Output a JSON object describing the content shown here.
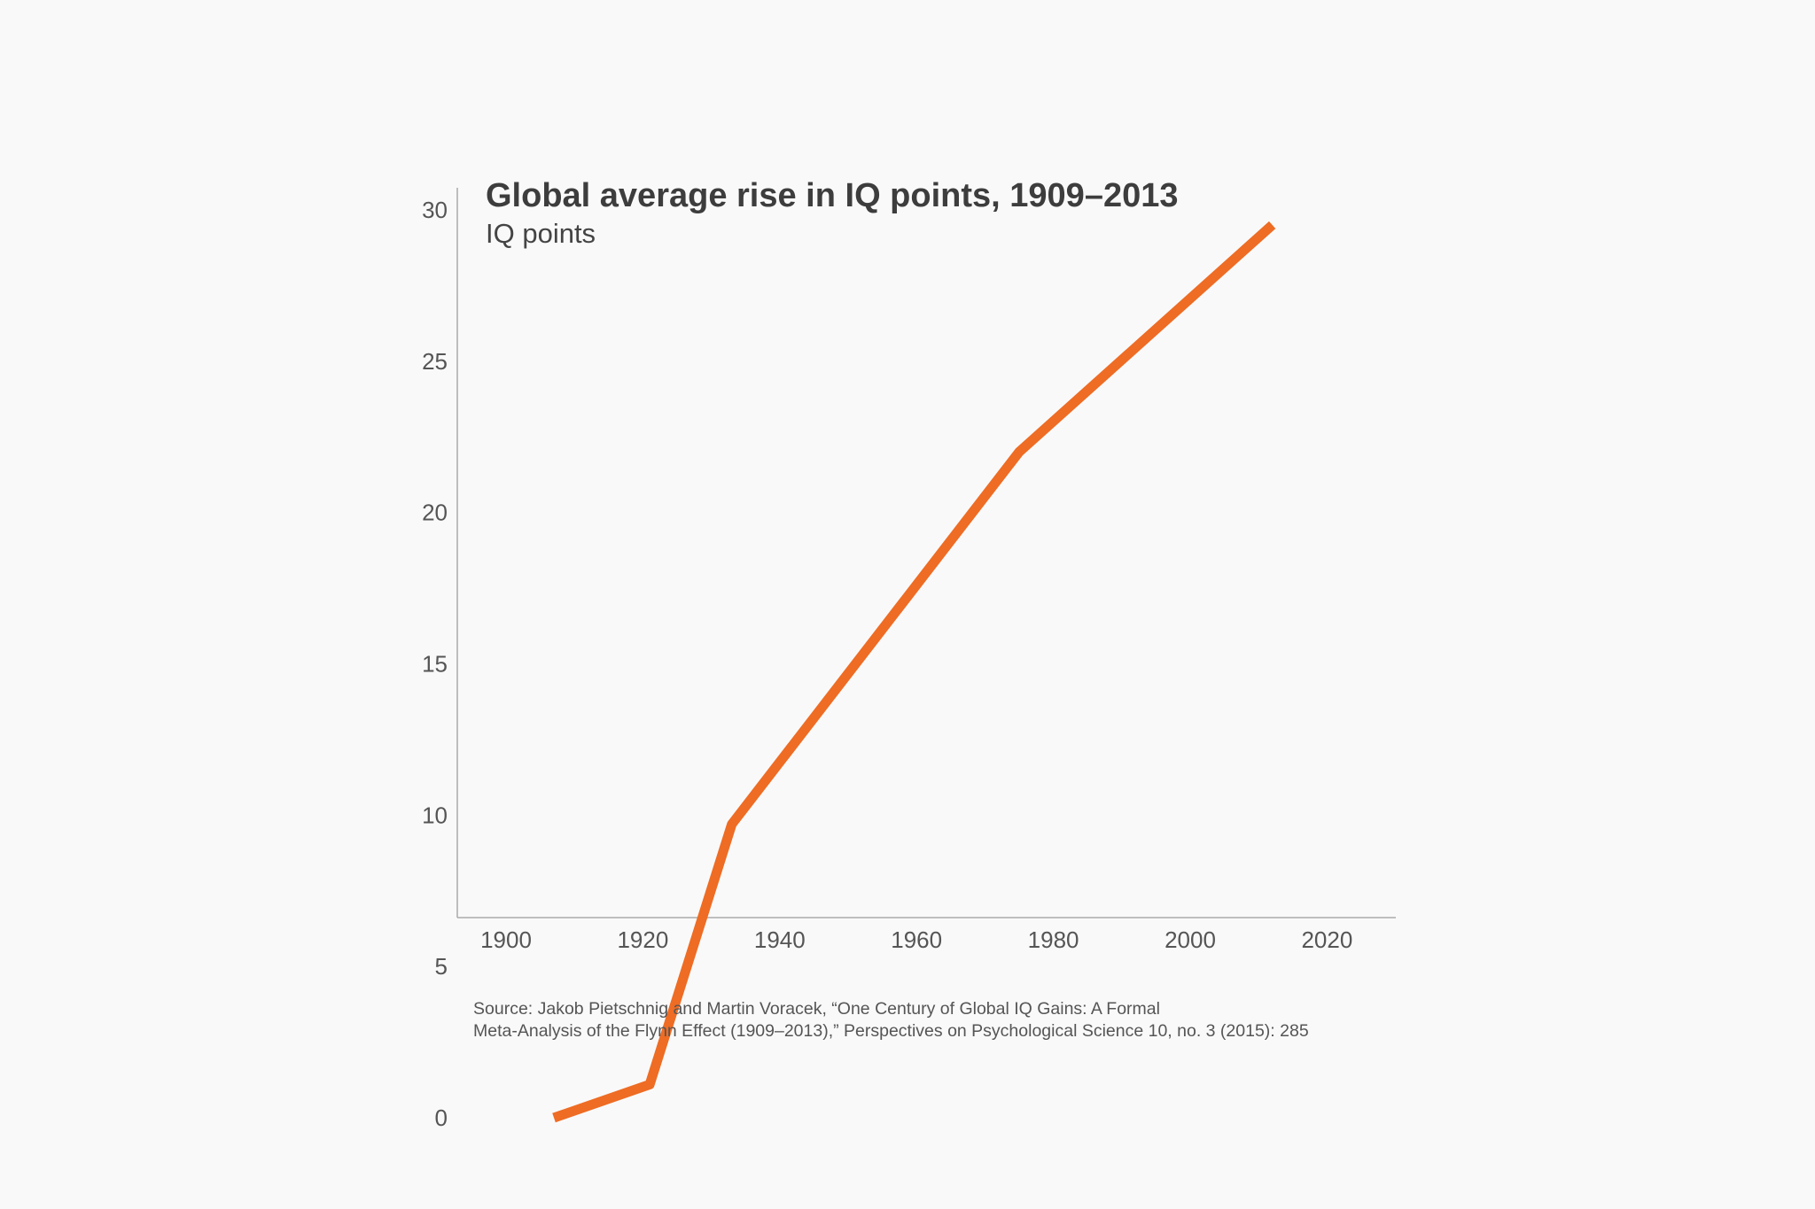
{
  "chart_data": {
    "type": "line",
    "title": "Global average rise in IQ points, 1909–2013",
    "subtitle": "IQ points",
    "xlabel": "",
    "ylabel": "",
    "xlim": [
      1895,
      2030
    ],
    "ylim": [
      0,
      30
    ],
    "x_ticks": [
      "1900",
      "1920",
      "1940",
      "1960",
      "1980",
      "2000",
      "2020"
    ],
    "y_ticks": [
      "0",
      "5",
      "10",
      "15",
      "20",
      "25",
      "30"
    ],
    "grid": false,
    "line_color": "#ee6c24",
    "x": [
      1907,
      1921,
      1933,
      1975,
      2012
    ],
    "y": [
      0,
      1.1,
      9.7,
      22.0,
      29.5
    ]
  },
  "source": {
    "line1": "Source: Jakob Pietschnig and Martin Voracek, “One Century of Global IQ Gains: A Formal",
    "line2": "Meta-Analysis of the Flynn Effect (1909–2013),” Perspectives on Psychological Science 10, no. 3 (2015): 285"
  }
}
